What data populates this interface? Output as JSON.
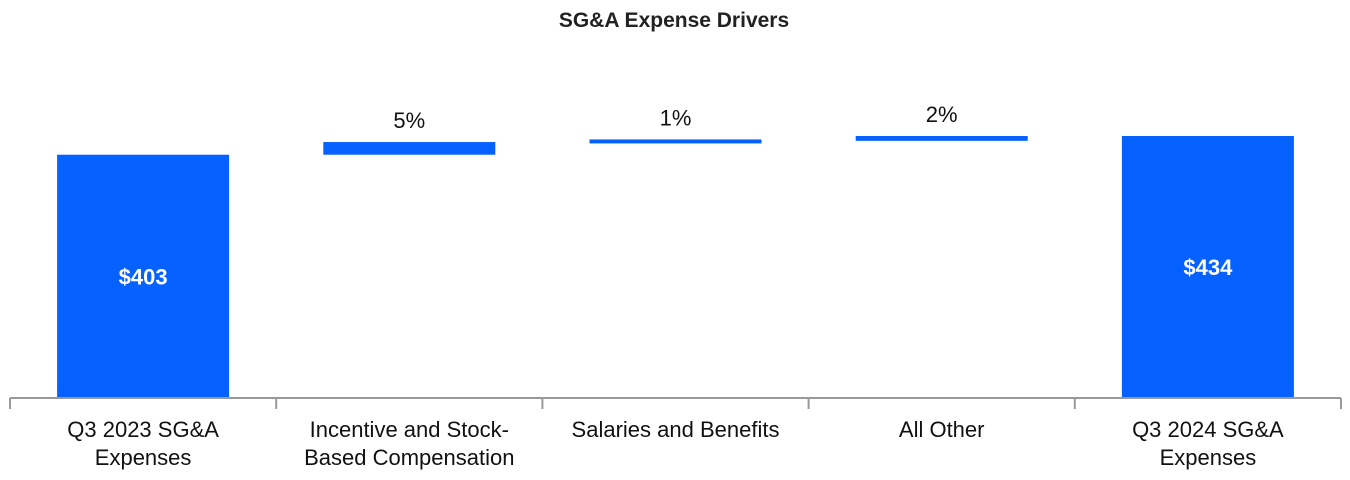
{
  "chart_data": {
    "type": "bar",
    "subtype": "waterfall",
    "title": "SG&A Expense Drivers",
    "xlabel": "",
    "ylabel": "",
    "categories": [
      [
        "Q3 2023 SG&A",
        "Expenses"
      ],
      [
        "Incentive and Stock-",
        "Based Compensation"
      ],
      [
        "Salaries and Benefits"
      ],
      [
        "All Other"
      ],
      [
        "Q3 2024 SG&A",
        "Expenses"
      ]
    ],
    "bars": [
      {
        "kind": "total",
        "start": 0,
        "end": 403,
        "label": "$403"
      },
      {
        "kind": "delta",
        "start": 403,
        "end": 424,
        "label": "5%"
      },
      {
        "kind": "delta",
        "start": 424,
        "end": 426,
        "label": "1%"
      },
      {
        "kind": "delta",
        "start": 426,
        "end": 434,
        "label": "2%"
      },
      {
        "kind": "total",
        "start": 0,
        "end": 434,
        "label": "$434"
      }
    ],
    "ylim": [
      0,
      434
    ],
    "grid": false,
    "legend": "none"
  },
  "colors": {
    "bar": "#0561FF",
    "axis": "#999999",
    "text": "#111111",
    "title": "#222222",
    "inbar_text": "#ffffff"
  }
}
